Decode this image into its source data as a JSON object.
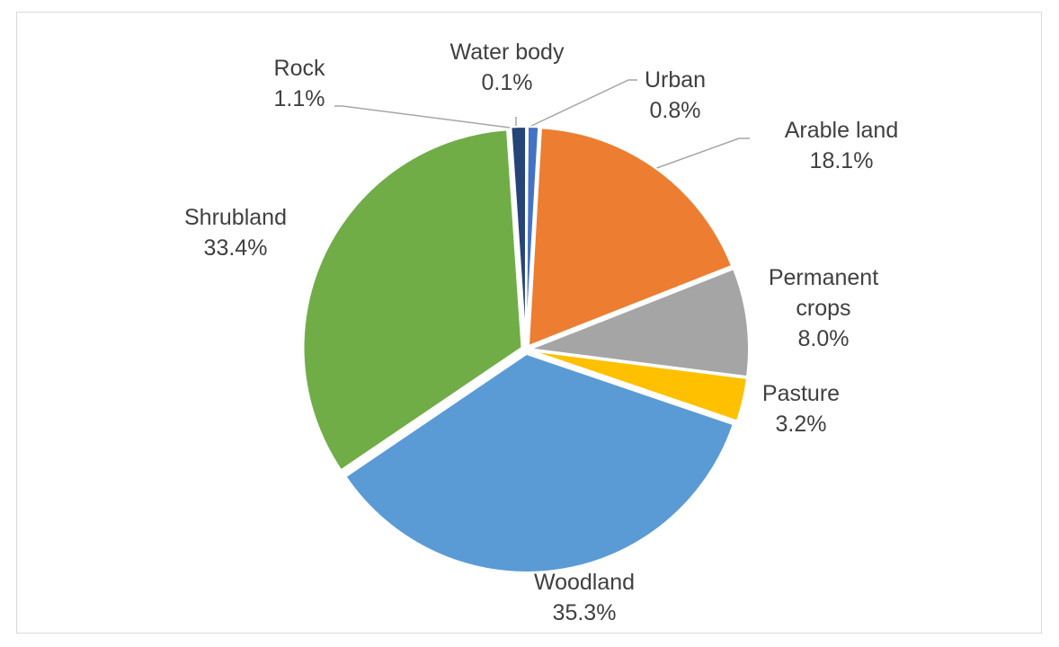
{
  "chart_data": {
    "type": "pie",
    "title": "",
    "series": [
      {
        "values": [
          0.8,
          18.1,
          8.0,
          3.2,
          35.3,
          33.4,
          1.1,
          0.1
        ],
        "categories": [
          "Urban",
          "Arable land",
          "Permanent crops",
          "Pasture",
          "Woodland",
          "Shrubland",
          "Rock",
          "Water body"
        ]
      }
    ],
    "slices": [
      {
        "label": "Urban",
        "value": 0.8,
        "display": "0.8%",
        "color": "#4472c4",
        "text_lines": [
          "Urban"
        ]
      },
      {
        "label": "Arable land",
        "value": 18.1,
        "display": "18.1%",
        "color": "#ed7d31",
        "text_lines": [
          "Arable land"
        ]
      },
      {
        "label": "Permanent crops",
        "value": 8.0,
        "display": "8.0%",
        "color": "#a5a5a5",
        "text_lines": [
          "Permanent",
          "crops"
        ]
      },
      {
        "label": "Pasture",
        "value": 3.2,
        "display": "3.2%",
        "color": "#ffc000",
        "text_lines": [
          "Pasture"
        ]
      },
      {
        "label": "Woodland",
        "value": 35.3,
        "display": "35.3%",
        "color": "#5b9bd5",
        "text_lines": [
          "Woodland"
        ]
      },
      {
        "label": "Shrubland",
        "value": 33.4,
        "display": "33.4%",
        "color": "#70ad47",
        "text_lines": [
          "Shrubland"
        ]
      },
      {
        "label": "Rock",
        "value": 1.1,
        "display": "1.1%",
        "color": "#264478",
        "text_lines": [
          "Rock"
        ]
      },
      {
        "label": "Water body",
        "value": 0.1,
        "display": "0.1%",
        "color": "#9e480e",
        "text_lines": [
          "Water body"
        ]
      }
    ],
    "legend": "none",
    "data_labels": "outside"
  }
}
